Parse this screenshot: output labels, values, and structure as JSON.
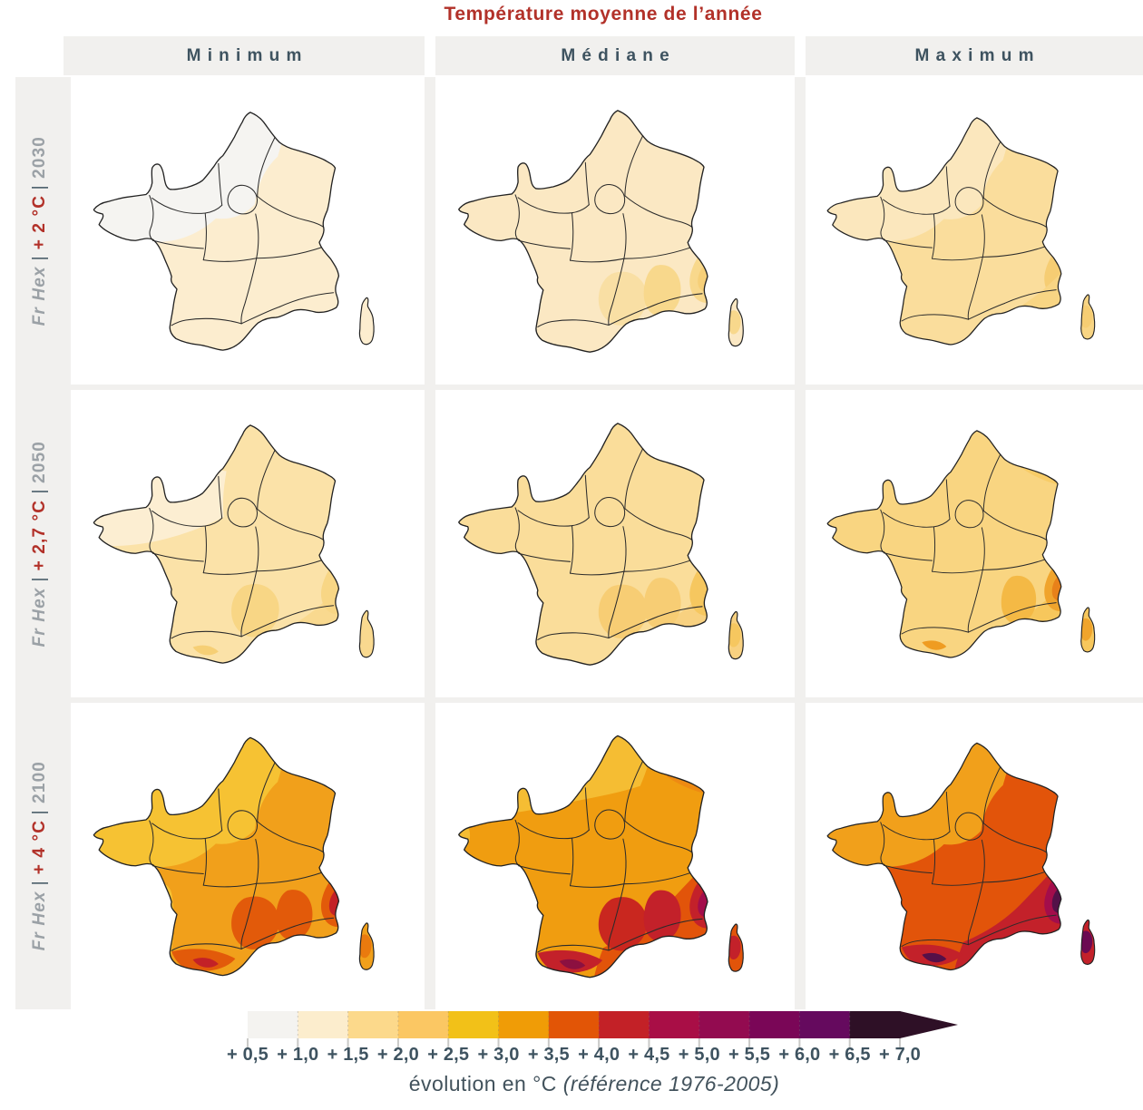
{
  "title": "Température moyenne de l’année",
  "columns": [
    "Minimum",
    "Médiane",
    "Maximum"
  ],
  "separator": "|",
  "rows": [
    {
      "scenario": "Fr Hex",
      "delta": "+ 2 °C",
      "year": "2030"
    },
    {
      "scenario": "Fr Hex",
      "delta": "+ 2,7 °C",
      "year": "2050"
    },
    {
      "scenario": "Fr Hex",
      "delta": "+ 4 °C",
      "year": "2100"
    }
  ],
  "legend": {
    "labels": [
      "+ 0,5",
      "+ 1,0",
      "+ 1,5",
      "+ 2,0",
      "+ 2,5",
      "+ 3,0",
      "+ 3,5",
      "+ 4,0",
      "+ 4,5",
      "+ 5,0",
      "+ 5,5",
      "+ 6,0",
      "+ 6,5",
      "+ 7,0"
    ],
    "segment_colors": [
      "#f4f3f0",
      "#fcedcd",
      "#fcd98b",
      "#fbc763",
      "#f2c118",
      "#f09c06",
      "#e25506",
      "#c32127",
      "#a90e46",
      "#930b50",
      "#7a0657",
      "#650a5e",
      "#2e1026"
    ],
    "arrow_color": "#2e1026",
    "caption_normal": "évolution en °C",
    "caption_italic": "(référence 1976-2005)"
  },
  "colors": {
    "accent_red": "#b23129",
    "slate": "#3e5360",
    "muted_gray": "#9ba1a6",
    "band_bg": "#f1f0ee",
    "map_border": "#2b2b2b"
  },
  "panels": [
    [
      {
        "name": "2030-minimum",
        "base": "#fcedcf",
        "layers": [
          [
            "nw",
            "#f5f4f1"
          ]
        ]
      },
      {
        "name": "2030-mediane",
        "base": "#fbe8c3",
        "layers": [
          [
            "massif",
            "#f9dfa4"
          ],
          [
            "rhone",
            "#f8d88c"
          ],
          [
            "alps",
            "#f8d88c"
          ],
          [
            "alps_core",
            "#f6cf78"
          ],
          [
            "corsica_spot",
            "#f8d88c"
          ]
        ]
      },
      {
        "name": "2030-maximum",
        "base": "#fadd9c",
        "layers": [
          [
            "nw",
            "#fbe7bd"
          ],
          [
            "alps",
            "#f6cd73"
          ],
          [
            "se_mid",
            "#f8d584"
          ],
          [
            "corsica_spot",
            "#f6cd73"
          ]
        ]
      }
    ],
    [
      {
        "name": "2050-minimum",
        "base": "#fbe2a8",
        "layers": [
          [
            "nw_coast",
            "#fceed2"
          ],
          [
            "se_mid",
            "#f9d98f"
          ],
          [
            "massif",
            "#f8d685"
          ],
          [
            "alps",
            "#f8d685"
          ],
          [
            "pyr_spot",
            "#f6cf75"
          ]
        ]
      },
      {
        "name": "2050-mediane",
        "base": "#fadd9a",
        "layers": [
          [
            "se_mid",
            "#f8d180"
          ],
          [
            "massif",
            "#f7cd74"
          ],
          [
            "rhone",
            "#f7cd74"
          ],
          [
            "alps",
            "#f6c75f"
          ],
          [
            "corsica_spot",
            "#f6c75f"
          ]
        ]
      },
      {
        "name": "2050-maximum",
        "base": "#f9d581",
        "layers": [
          [
            "east_band",
            "#f8cc67"
          ],
          [
            "se_mid",
            "#f7c75c"
          ],
          [
            "rhone",
            "#f4b945"
          ],
          [
            "alps",
            "#f0a42c"
          ],
          [
            "alps_core",
            "#e8811a"
          ],
          [
            "pyr_spot",
            "#ef9c22"
          ],
          [
            "corsica_spot",
            "#f0a42c"
          ]
        ]
      }
    ],
    [
      {
        "name": "2100-minimum",
        "base": "#f1a01b",
        "layers": [
          [
            "nw",
            "#f6c233"
          ],
          [
            "west_coast",
            "#f6c233"
          ],
          [
            "massif",
            "#e25a0a"
          ],
          [
            "rhone",
            "#e25a0a"
          ],
          [
            "alps",
            "#e25a0a"
          ],
          [
            "pyrenees",
            "#e25a0a"
          ],
          [
            "alps_core",
            "#c32127"
          ],
          [
            "pyr_spot",
            "#c32127"
          ],
          [
            "corsica_spot",
            "#ea7a0e"
          ]
        ]
      },
      {
        "name": "2100-mediane",
        "base": "#f09d10",
        "layers": [
          [
            "north_strip",
            "#f5bd33"
          ],
          [
            "bret_tip",
            "#f5bd33"
          ],
          [
            "east_band",
            "#ee8a12"
          ],
          [
            "se_big",
            "#e2540a"
          ],
          [
            "massif",
            "#c9271f"
          ],
          [
            "rhone",
            "#c3212a"
          ],
          [
            "alps",
            "#c3212a"
          ],
          [
            "alps_core",
            "#a30d4b"
          ],
          [
            "alps_dot",
            "#5c0b56"
          ],
          [
            "pyrenees",
            "#c3212a"
          ],
          [
            "pyr_spot",
            "#8c1040"
          ],
          [
            "corsica_spot",
            "#c3212a"
          ]
        ]
      },
      {
        "name": "2100-maximum",
        "base": "#e2540a",
        "layers": [
          [
            "nw",
            "#f1a01b"
          ],
          [
            "se_big",
            "#c3212a"
          ],
          [
            "alps",
            "#a30d4b"
          ],
          [
            "alps_core",
            "#531148"
          ],
          [
            "alps_dot",
            "#2e1026"
          ],
          [
            "pyrenees",
            "#c3212a"
          ],
          [
            "pyr_spot",
            "#551048"
          ],
          [
            "corsica_spot",
            "#6b0a52"
          ]
        ]
      }
    ]
  ],
  "chart_data": {
    "type": "heatmap",
    "subtype": "choropleth-small-multiples",
    "title": "Température moyenne de l’année",
    "columns": [
      "Minimum",
      "Médiane",
      "Maximum"
    ],
    "rows": [
      {
        "scenario": "Fr Hex | + 2 °C",
        "horizon": "2030",
        "values_c": {
          "Minimum": "+0,5 à +1,5",
          "Médiane": "+1,0 à +1,5",
          "Maximum": "+1,0 à +2,0"
        }
      },
      {
        "scenario": "Fr Hex | + 2,7 °C",
        "horizon": "2050",
        "values_c": {
          "Minimum": "+1,0 à +2,0",
          "Médiane": "+1,5 à +2,0",
          "Maximum": "+1,5 à +3,5"
        }
      },
      {
        "scenario": "Fr Hex | + 4 °C",
        "horizon": "2100",
        "values_c": {
          "Minimum": "+2,5 à +4,0",
          "Médiane": "+3,0 à +4,5",
          "Maximum": "+3,0 à +7,0"
        }
      }
    ],
    "scale": {
      "unit": "°C",
      "label": "évolution en °C",
      "reference_period": "1976-2005",
      "min": 0.5,
      "max": 7.0,
      "step": 0.5,
      "ticks": [
        0.5,
        1.0,
        1.5,
        2.0,
        2.5,
        3.0,
        3.5,
        4.0,
        4.5,
        5.0,
        5.5,
        6.0,
        6.5,
        7.0
      ]
    },
    "legend_position": "bottom",
    "grid": false
  }
}
